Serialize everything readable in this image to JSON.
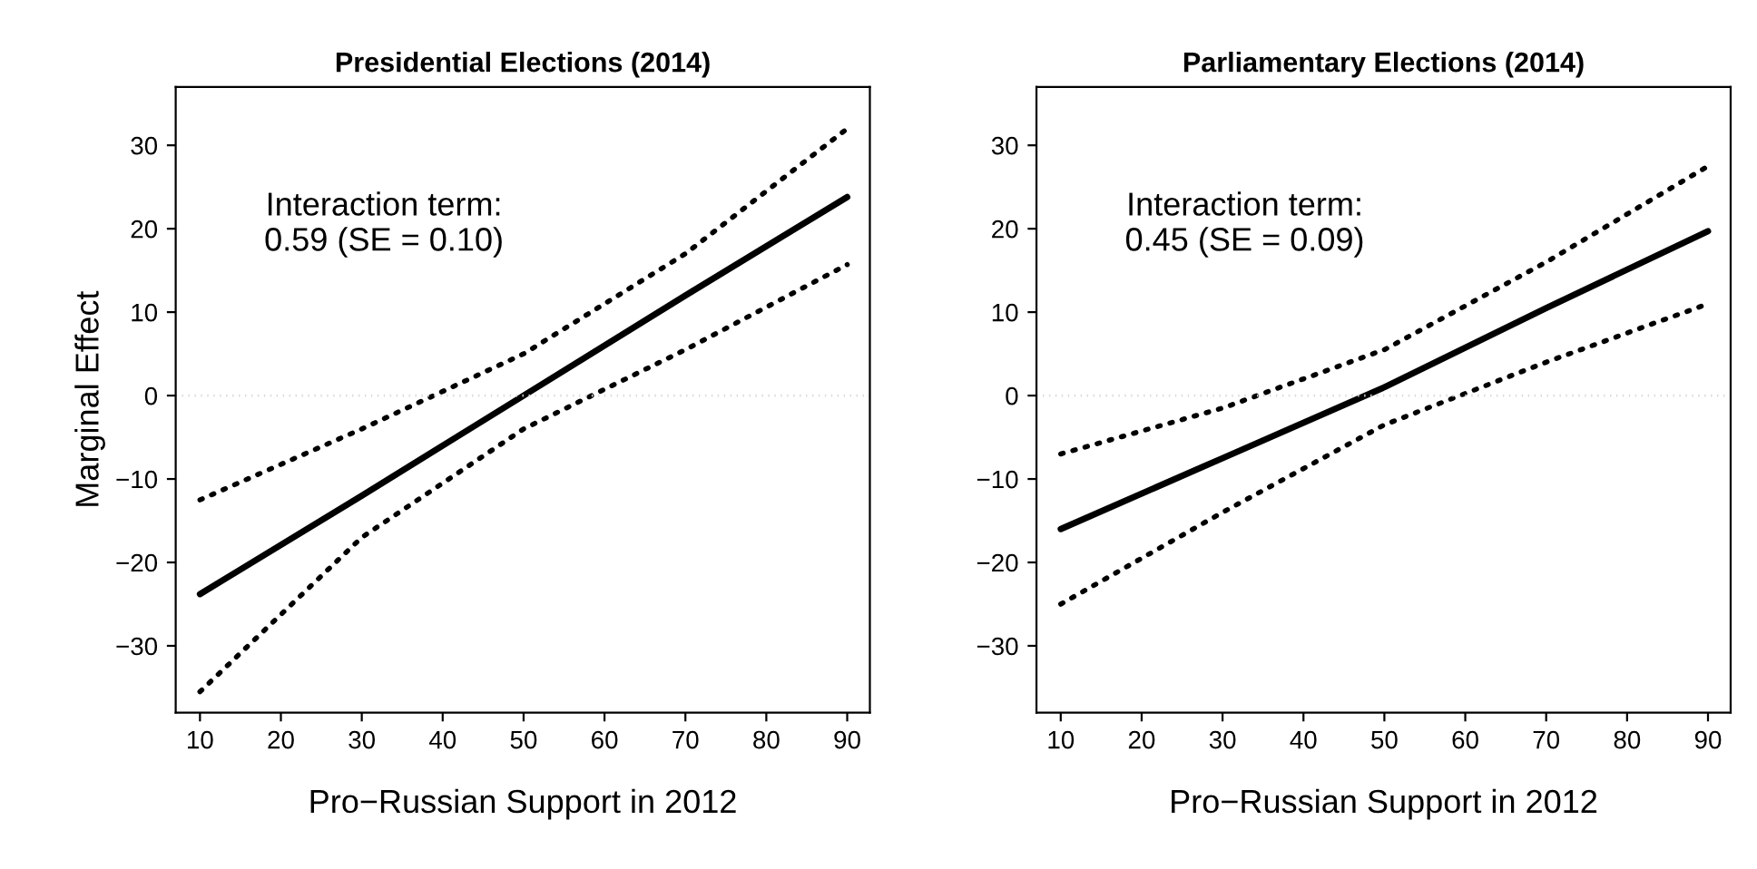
{
  "chart_data": [
    {
      "type": "line",
      "title": "Presidential Elections (2014)",
      "xlabel": "Pro−Russian Support in 2012",
      "ylabel": "Marginal Effect",
      "x": [
        10,
        30,
        50,
        70,
        90
      ],
      "series": [
        {
          "color": "#000000",
          "line_style": "solid",
          "values": [
            -23.8,
            -12,
            0,
            12,
            23.8
          ]
        },
        {
          "color": "#000000",
          "line_style": "dotted",
          "values": [
            -12.5,
            -4,
            5,
            17,
            32
          ]
        },
        {
          "color": "#000000",
          "line_style": "dotted",
          "values": [
            -35.5,
            -17,
            -4,
            5.5,
            15.7
          ]
        }
      ],
      "xlim": [
        7,
        92.8
      ],
      "ylim": [
        -38,
        37
      ],
      "xticks": [
        10,
        20,
        30,
        40,
        50,
        60,
        70,
        80,
        90
      ],
      "yticks": [
        -30,
        -20,
        -10,
        0,
        10,
        20,
        30
      ],
      "ref_lines": [
        {
          "axis": "y",
          "value": 0,
          "color": "#d9d9d9",
          "line_style": "dotted"
        }
      ],
      "annotations": [
        "Interaction term:\n0.59 (SE = 0.10)"
      ],
      "grid": false,
      "legend": false
    },
    {
      "type": "line",
      "title": "Parliamentary Elections (2014)",
      "xlabel": "Pro−Russian Support in 2012",
      "x": [
        10,
        30,
        50,
        70,
        90
      ],
      "series": [
        {
          "color": "#000000",
          "line_style": "solid",
          "values": [
            -16,
            -7.5,
            1,
            10.5,
            19.7
          ]
        },
        {
          "color": "#000000",
          "line_style": "dotted",
          "values": [
            -7,
            -1.5,
            5.5,
            16,
            27.5
          ]
        },
        {
          "color": "#000000",
          "line_style": "dotted",
          "values": [
            -25,
            -14,
            -3.5,
            4,
            11
          ]
        }
      ],
      "xlim": [
        7,
        92.8
      ],
      "ylim": [
        -38,
        37
      ],
      "xticks": [
        10,
        20,
        30,
        40,
        50,
        60,
        70,
        80,
        90
      ],
      "yticks": [
        -30,
        -20,
        -10,
        0,
        10,
        20,
        30
      ],
      "ref_lines": [
        {
          "axis": "y",
          "value": 0,
          "color": "#d9d9d9",
          "line_style": "dotted"
        }
      ],
      "annotations": [
        "Interaction term:\n0.45 (SE = 0.09)"
      ],
      "grid": false,
      "legend": false
    }
  ]
}
